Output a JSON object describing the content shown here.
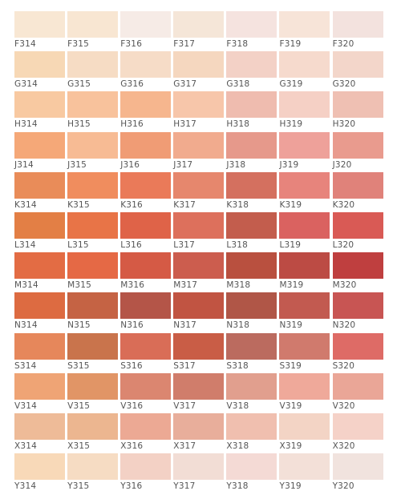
{
  "rows": [
    {
      "cells": [
        {
          "code": "F314",
          "color": "#f8e7d3"
        },
        {
          "code": "F315",
          "color": "#f8e6d2"
        },
        {
          "code": "F316",
          "color": "#f6ebe6"
        },
        {
          "code": "F317",
          "color": "#f5e6d8"
        },
        {
          "code": "F318",
          "color": "#f5e3df"
        },
        {
          "code": "F319",
          "color": "#f7e4d8"
        },
        {
          "code": "F320",
          "color": "#f3e2de"
        }
      ]
    },
    {
      "cells": [
        {
          "code": "G314",
          "color": "#f7d8b5"
        },
        {
          "code": "G315",
          "color": "#f6dcc4"
        },
        {
          "code": "G316",
          "color": "#f6dcc7"
        },
        {
          "code": "G317",
          "color": "#f5d7bf"
        },
        {
          "code": "G318",
          "color": "#f3d1c6"
        },
        {
          "code": "G319",
          "color": "#f6dacd"
        },
        {
          "code": "G320",
          "color": "#f3d6ca"
        }
      ]
    },
    {
      "cells": [
        {
          "code": "H314",
          "color": "#f8c9a1"
        },
        {
          "code": "H315",
          "color": "#f8c29c"
        },
        {
          "code": "H316",
          "color": "#f6b68e"
        },
        {
          "code": "H317",
          "color": "#f7c6aa"
        },
        {
          "code": "H318",
          "color": "#efbcaf"
        },
        {
          "code": "H319",
          "color": "#f5d0c5"
        },
        {
          "code": "H320",
          "color": "#efc0b3"
        }
      ]
    },
    {
      "cells": [
        {
          "code": "J314",
          "color": "#f5a878"
        },
        {
          "code": "J315",
          "color": "#f7bb94"
        },
        {
          "code": "J316",
          "color": "#f09c75"
        },
        {
          "code": "J317",
          "color": "#f1ab8e"
        },
        {
          "code": "J318",
          "color": "#e6998b"
        },
        {
          "code": "J319",
          "color": "#eea19a"
        },
        {
          "code": "J320",
          "color": "#e99b8e"
        }
      ]
    },
    {
      "cells": [
        {
          "code": "K314",
          "color": "#e98c59"
        },
        {
          "code": "K315",
          "color": "#f08d5e"
        },
        {
          "code": "K316",
          "color": "#ea7a59"
        },
        {
          "code": "K317",
          "color": "#e6876d"
        },
        {
          "code": "K318",
          "color": "#d4705f"
        },
        {
          "code": "K319",
          "color": "#e7847c"
        },
        {
          "code": "K320",
          "color": "#e0827a"
        }
      ]
    },
    {
      "cells": [
        {
          "code": "L314",
          "color": "#e37f45"
        },
        {
          "code": "L315",
          "color": "#e87447"
        },
        {
          "code": "L316",
          "color": "#df6348"
        },
        {
          "code": "L317",
          "color": "#dd705c"
        },
        {
          "code": "L318",
          "color": "#c35d4d"
        },
        {
          "code": "L319",
          "color": "#da6260"
        },
        {
          "code": "L320",
          "color": "#d95a55"
        }
      ]
    },
    {
      "cells": [
        {
          "code": "M314",
          "color": "#e36c44"
        },
        {
          "code": "M315",
          "color": "#e56945"
        },
        {
          "code": "M316",
          "color": "#d55a45"
        },
        {
          "code": "M317",
          "color": "#cc5d4e"
        },
        {
          "code": "M318",
          "color": "#b9503f"
        },
        {
          "code": "M319",
          "color": "#bc4b44"
        },
        {
          "code": "M320",
          "color": "#bf3f3f"
        }
      ]
    },
    {
      "cells": [
        {
          "code": "N314",
          "color": "#dd6b41"
        },
        {
          "code": "N315",
          "color": "#c56344"
        },
        {
          "code": "N316",
          "color": "#b45548"
        },
        {
          "code": "N317",
          "color": "#c15442"
        },
        {
          "code": "N318",
          "color": "#b05647"
        },
        {
          "code": "N319",
          "color": "#c25a50"
        },
        {
          "code": "N320",
          "color": "#c85553"
        }
      ]
    },
    {
      "cells": [
        {
          "code": "S314",
          "color": "#e6875b"
        },
        {
          "code": "S315",
          "color": "#c9744c"
        },
        {
          "code": "S316",
          "color": "#d96d57"
        },
        {
          "code": "S317",
          "color": "#c95d46"
        },
        {
          "code": "S318",
          "color": "#bb6b5f"
        },
        {
          "code": "S319",
          "color": "#d07a6d"
        },
        {
          "code": "S320",
          "color": "#de6b66"
        }
      ]
    },
    {
      "cells": [
        {
          "code": "V314",
          "color": "#efa475"
        },
        {
          "code": "V315",
          "color": "#e19566"
        },
        {
          "code": "V316",
          "color": "#db8670"
        },
        {
          "code": "V317",
          "color": "#d07d6b"
        },
        {
          "code": "V318",
          "color": "#e19f8e"
        },
        {
          "code": "V319",
          "color": "#efa99a"
        },
        {
          "code": "V320",
          "color": "#eaa697"
        }
      ]
    },
    {
      "cells": [
        {
          "code": "X314",
          "color": "#eebb98"
        },
        {
          "code": "X315",
          "color": "#ecb690"
        },
        {
          "code": "X316",
          "color": "#eca994"
        },
        {
          "code": "X317",
          "color": "#e8ae9b"
        },
        {
          "code": "X318",
          "color": "#f0bfaf"
        },
        {
          "code": "X319",
          "color": "#f3d4c5"
        },
        {
          "code": "X320",
          "color": "#f5d2c8"
        }
      ]
    },
    {
      "cells": [
        {
          "code": "Y314",
          "color": "#f8d9b8"
        },
        {
          "code": "Y315",
          "color": "#f6dcc3"
        },
        {
          "code": "Y316",
          "color": "#f3d1c5"
        },
        {
          "code": "Y317",
          "color": "#f2ddd5"
        },
        {
          "code": "Y318",
          "color": "#f4dad5"
        },
        {
          "code": "Y319",
          "color": "#f3e0d8"
        },
        {
          "code": "Y320",
          "color": "#f1e3de"
        }
      ]
    }
  ]
}
